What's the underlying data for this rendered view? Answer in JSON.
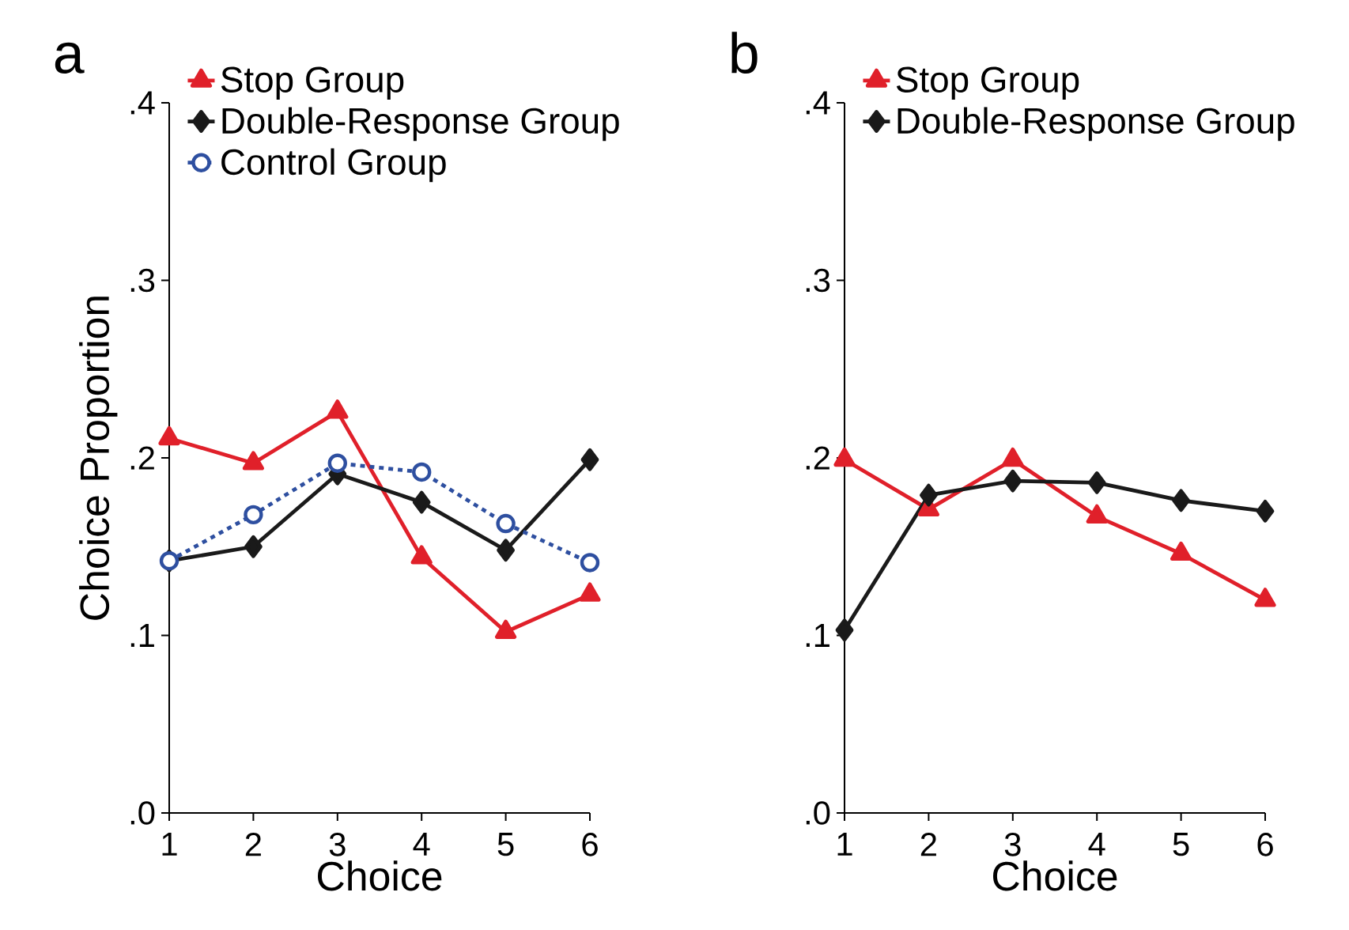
{
  "chart_data": [
    {
      "type": "line",
      "title": "a",
      "xlabel": "Choice",
      "ylabel": "Choice Proportion",
      "x": [
        1,
        2,
        3,
        4,
        5,
        6
      ],
      "xlim": [
        1,
        6
      ],
      "xticks": [
        1,
        2,
        3,
        4,
        5,
        6
      ],
      "ylim": [
        0,
        0.4
      ],
      "yticks": [
        {
          "value": 0,
          "label": ".0"
        },
        {
          "value": 0.1,
          "label": ".1"
        },
        {
          "value": 0.2,
          "label": ".2"
        },
        {
          "value": 0.3,
          "label": ".3"
        },
        {
          "value": 0.4,
          "label": ".4"
        }
      ],
      "legend": "top",
      "series": [
        {
          "name": "Stop Group",
          "color": "#e0202a",
          "marker": "triangle",
          "line_style": "solid",
          "values": [
            0.211,
            0.197,
            0.226,
            0.144,
            0.102,
            0.123
          ]
        },
        {
          "name": "Double-Response Group",
          "color": "#1a1a1a",
          "marker": "diamond",
          "line_style": "solid",
          "values": [
            0.142,
            0.15,
            0.191,
            0.175,
            0.148,
            0.199
          ]
        },
        {
          "name": "Control Group",
          "color": "#2e4fa0",
          "marker": "circle",
          "line_style": "dashed",
          "values": [
            0.142,
            0.168,
            0.197,
            0.192,
            0.163,
            0.141
          ]
        }
      ]
    },
    {
      "type": "line",
      "title": "b",
      "xlabel": "Choice",
      "x": [
        1,
        2,
        3,
        4,
        5,
        6
      ],
      "xlim": [
        1,
        6
      ],
      "xticks": [
        1,
        2,
        3,
        4,
        5,
        6
      ],
      "ylim": [
        0,
        0.4
      ],
      "yticks": [
        {
          "value": 0,
          "label": ".0"
        },
        {
          "value": 0.1,
          "label": ".1"
        },
        {
          "value": 0.2,
          "label": ".2"
        },
        {
          "value": 0.3,
          "label": ".3"
        },
        {
          "value": 0.4,
          "label": ".4"
        }
      ],
      "legend": "top",
      "series": [
        {
          "name": "Stop Group",
          "color": "#e0202a",
          "marker": "triangle",
          "line_style": "solid",
          "values": [
            0.199,
            0.171,
            0.199,
            0.167,
            0.146,
            0.12
          ]
        },
        {
          "name": "Double-Response Group",
          "color": "#1a1a1a",
          "marker": "diamond",
          "line_style": "solid",
          "values": [
            0.103,
            0.179,
            0.187,
            0.186,
            0.176,
            0.17
          ]
        }
      ]
    }
  ]
}
